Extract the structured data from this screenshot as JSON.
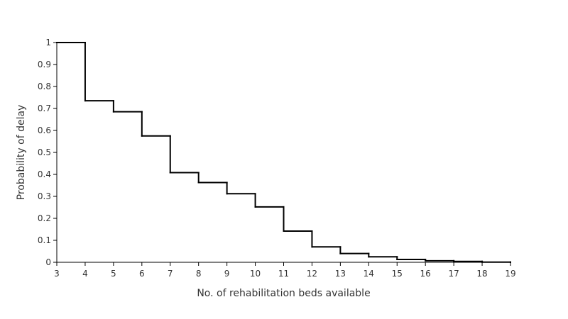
{
  "chart_data": {
    "type": "line",
    "step": "post",
    "title": "",
    "xlabel": "No. of rehabilitation beds available",
    "ylabel": "Probability of delay",
    "xlim": [
      3,
      19
    ],
    "ylim": [
      0,
      1
    ],
    "x_ticks": [
      "3",
      "4",
      "5",
      "6",
      "7",
      "8",
      "9",
      "10",
      "11",
      "12",
      "13",
      "14",
      "15",
      "16",
      "17",
      "18",
      "19"
    ],
    "y_ticks": [
      "0",
      "0.1",
      "0.2",
      "0.3",
      "0.4",
      "0.5",
      "0.6",
      "0.7",
      "0.8",
      "0.9",
      "1"
    ],
    "grid": false,
    "legend": "none",
    "line_color": "#000000",
    "series": [
      {
        "x": [
          3,
          4,
          5,
          6,
          7,
          8,
          9,
          10,
          11,
          12,
          13,
          14,
          15,
          16,
          17,
          18,
          19
        ],
        "y": [
          1.0,
          0.735,
          0.685,
          0.575,
          0.408,
          0.363,
          0.312,
          0.252,
          0.142,
          0.07,
          0.04,
          0.025,
          0.013,
          0.007,
          0.004,
          0.001,
          0.0
        ]
      }
    ]
  }
}
